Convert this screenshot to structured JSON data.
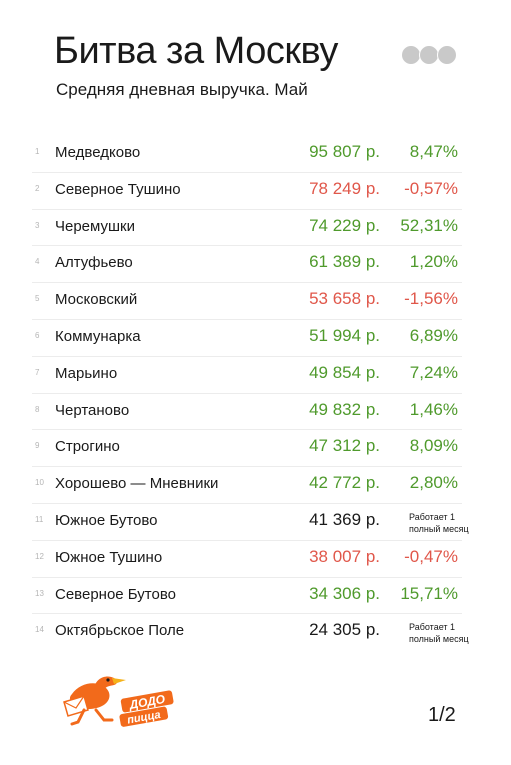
{
  "header": {
    "title": "Битва за Москву",
    "subtitle": "Средняя дневная выручка. Май"
  },
  "colors": {
    "positive": "#4f9a2c",
    "negative": "#e0574a",
    "neutral": "#1a1a1a",
    "brand_orange": "#f26a1b"
  },
  "rows": [
    {
      "rank": "1",
      "name": "Медведково",
      "value": "95 807 р.",
      "change": "8,47%",
      "status": "positive"
    },
    {
      "rank": "2",
      "name": "Северное Тушино",
      "value": "78 249 р.",
      "change": "-0,57%",
      "status": "negative"
    },
    {
      "rank": "3",
      "name": "Черемушки",
      "value": "74 229 р.",
      "change": "52,31%",
      "status": "positive"
    },
    {
      "rank": "4",
      "name": "Алтуфьево",
      "value": "61 389 р.",
      "change": "1,20%",
      "status": "positive"
    },
    {
      "rank": "5",
      "name": "Московский",
      "value": "53 658 р.",
      "change": "-1,56%",
      "status": "negative"
    },
    {
      "rank": "6",
      "name": "Коммунарка",
      "value": "51 994 р.",
      "change": "6,89%",
      "status": "positive"
    },
    {
      "rank": "7",
      "name": "Марьино",
      "value": "49 854 р.",
      "change": "7,24%",
      "status": "positive"
    },
    {
      "rank": "8",
      "name": "Чертаново",
      "value": "49 832 р.",
      "change": "1,46%",
      "status": "positive"
    },
    {
      "rank": "9",
      "name": "Строгино",
      "value": "47 312 р.",
      "change": "8,09%",
      "status": "positive"
    },
    {
      "rank": "10",
      "name": "Хорошево — Мневники",
      "value": "42 772 р.",
      "change": "2,80%",
      "status": "positive"
    },
    {
      "rank": "11",
      "name": "Южное Бутово",
      "value": "41 369 р.",
      "note1": "Работает 1",
      "note2": "полный месяц",
      "status": "neutral"
    },
    {
      "rank": "12",
      "name": "Южное Тушино",
      "value": "38 007 р.",
      "change": "-0,47%",
      "status": "negative"
    },
    {
      "rank": "13",
      "name": "Северное Бутово",
      "value": "34 306 р.",
      "change": "15,71%",
      "status": "positive"
    },
    {
      "rank": "14",
      "name": "Октябрьское Поле",
      "value": "24 305 р.",
      "note1": "Работает 1",
      "note2": "полный месяц",
      "status": "neutral"
    }
  ],
  "logo": {
    "text1": "ДОДО",
    "text2": "пицца"
  },
  "footer": {
    "page": "1/2"
  }
}
